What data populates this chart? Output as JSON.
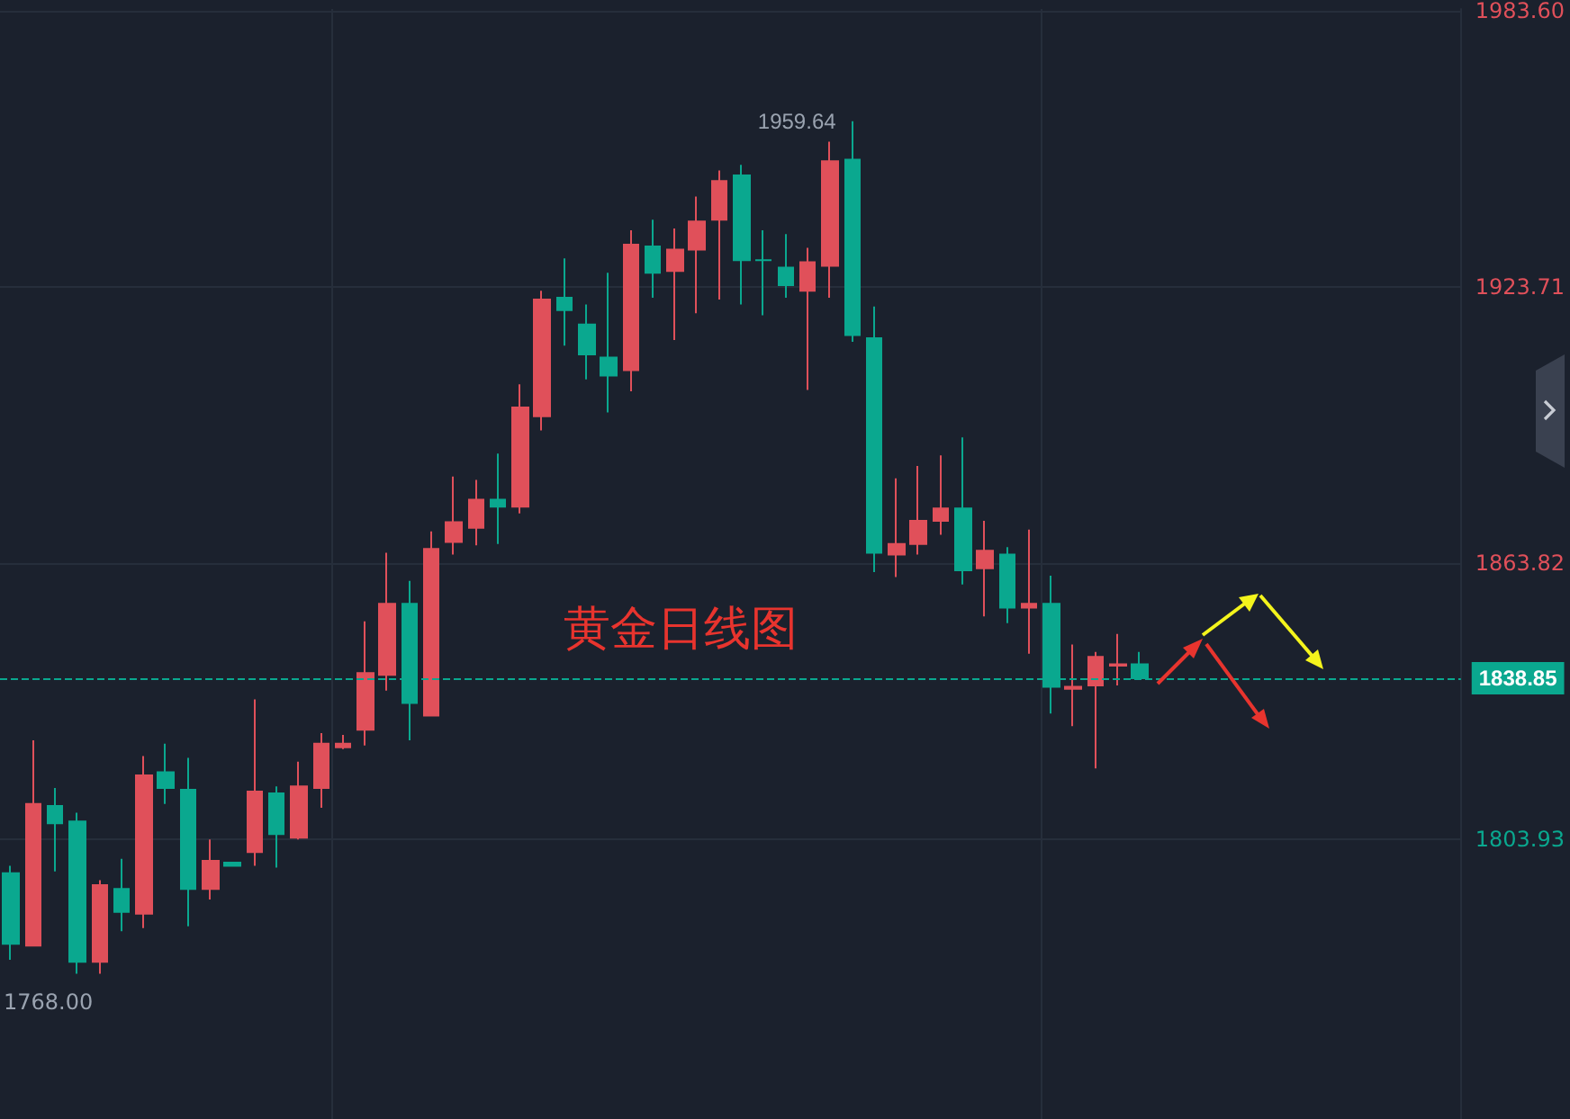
{
  "chart_data": {
    "type": "candlestick",
    "title": "黄金日线图",
    "categories": [
      null,
      null,
      null,
      null,
      null,
      null,
      null,
      null,
      null,
      null,
      null,
      null,
      null,
      null,
      null,
      null,
      null,
      null,
      null,
      null,
      null,
      null,
      null,
      null,
      null,
      null,
      null,
      null,
      null,
      null,
      null,
      null,
      null,
      null,
      null,
      null,
      null,
      null,
      null,
      null,
      null,
      null,
      null,
      null,
      null,
      null,
      null,
      null,
      null,
      null,
      null,
      null,
      null,
      null,
      null,
      null,
      null,
      null,
      null,
      null,
      null,
      null,
      null,
      null,
      null,
      null
    ],
    "ohlc": [
      [
        1796.6,
        1798.2,
        1777.8,
        1781.3
      ],
      [
        1780.9,
        1825.4,
        1780.9,
        1811.6
      ],
      [
        1811.2,
        1815.1,
        1797.0,
        1807.4
      ],
      [
        1807.8,
        1809.7,
        1774.8,
        1777.4
      ],
      [
        1777.4,
        1795.1,
        1774.8,
        1794.0
      ],
      [
        1793.2,
        1799.7,
        1784.0,
        1788.2
      ],
      [
        1787.8,
        1822.0,
        1784.7,
        1817.8
      ],
      [
        1818.5,
        1824.7,
        1811.6,
        1815.1
      ],
      [
        1814.7,
        1821.6,
        1785.1,
        1793.2
      ],
      [
        1793.2,
        1803.9,
        1790.9,
        1799.3
      ],
      [
        1798.9,
        1798.9,
        1798.2,
        1798.2
      ],
      [
        1801.2,
        1834.3,
        1798.2,
        1814.3
      ],
      [
        1813.9,
        1815.4,
        1797.8,
        1805.1
      ],
      [
        1804.3,
        1820.8,
        1803.9,
        1815.4
      ],
      [
        1815.1,
        1827.0,
        1810.8,
        1824.7
      ],
      [
        1823.9,
        1826.6,
        1823.5,
        1824.7
      ],
      [
        1827.7,
        1851.2,
        1824.3,
        1840.0
      ],
      [
        1839.6,
        1866.1,
        1836.2,
        1855.0
      ],
      [
        1855.0,
        1860.0,
        1825.4,
        1833.5
      ],
      [
        1830.8,
        1870.7,
        1830.8,
        1866.9
      ],
      [
        1868.4,
        1882.6,
        1865.7,
        1872.7
      ],
      [
        1871.5,
        1881.9,
        1867.7,
        1877.6
      ],
      [
        1877.6,
        1887.6,
        1868.0,
        1876.1
      ],
      [
        1876.1,
        1902.6,
        1874.6,
        1897.6
      ],
      [
        1895.7,
        1922.9,
        1892.6,
        1921.0
      ],
      [
        1921.4,
        1929.9,
        1911.0,
        1918.7
      ],
      [
        1915.6,
        1919.9,
        1903.7,
        1909.1
      ],
      [
        1908.4,
        1926.8,
        1896.5,
        1904.5
      ],
      [
        1905.7,
        1936.0,
        1901.1,
        1932.9
      ],
      [
        1932.5,
        1938.3,
        1921.4,
        1926.8
      ],
      [
        1927.2,
        1936.4,
        1912.2,
        1931.8
      ],
      [
        1931.8,
        1943.3,
        1918.0,
        1937.9
      ],
      [
        1938.3,
        1949.0,
        1921.0,
        1946.7
      ],
      [
        1947.9,
        1950.2,
        1919.9,
        1929.5
      ],
      [
        1929.5,
        1936.0,
        1917.6,
        1929.5
      ],
      [
        1927.9,
        1935.2,
        1921.4,
        1924.1
      ],
      [
        1922.9,
        1932.2,
        1901.4,
        1929.1
      ],
      [
        1928.3,
        1955.2,
        1921.4,
        1951.0
      ],
      [
        1951.3,
        1959.64,
        1911.8,
        1913.3
      ],
      [
        1912.6,
        1919.5,
        1861.9,
        1866.1
      ],
      [
        1865.7,
        1882.2,
        1860.8,
        1868.0
      ],
      [
        1868.0,
        1884.9,
        1865.7,
        1873.0
      ],
      [
        1873.0,
        1887.2,
        1870.0,
        1875.7
      ],
      [
        1875.7,
        1891.1,
        1859.2,
        1862.3
      ],
      [
        1862.7,
        1873.0,
        1852.3,
        1866.5
      ],
      [
        1865.7,
        1867.3,
        1850.8,
        1854.2
      ],
      [
        1854.2,
        1871.1,
        1844.2,
        1855.0
      ],
      [
        1855.0,
        1861.1,
        1831.2,
        1837.0
      ],
      [
        1836.6,
        1846.2,
        1828.5,
        1837.0
      ],
      [
        1837.3,
        1844.6,
        1819.3,
        1843.5
      ],
      [
        1841.6,
        1848.5,
        1837.3,
        1841.9
      ],
      [
        1841.9,
        1844.6,
        1838.85,
        1838.85
      ],
      null,
      null,
      null,
      null,
      null,
      null,
      null,
      null,
      null,
      null,
      null,
      null,
      null,
      null
    ],
    "colors": [
      "#0aa88f",
      "#e0505a",
      "#0aa88f",
      "#0aa88f",
      "#e0505a",
      "#0aa88f",
      "#e0505a",
      "#0aa88f",
      "#0aa88f",
      "#e0505a",
      "#0aa88f",
      "#e0505a",
      "#0aa88f",
      "#e0505a",
      "#e0505a",
      "#e0505a",
      "#e0505a",
      "#e0505a",
      "#0aa88f",
      "#e0505a",
      "#e0505a",
      "#e0505a",
      "#0aa88f",
      "#e0505a",
      "#e0505a",
      "#0aa88f",
      "#0aa88f",
      "#0aa88f",
      "#e0505a",
      "#0aa88f",
      "#e0505a",
      "#e0505a",
      "#e0505a",
      "#0aa88f",
      "#0aa88f",
      "#0aa88f",
      "#e0505a",
      "#e0505a",
      "#0aa88f",
      "#0aa88f",
      "#e0505a",
      "#e0505a",
      "#e0505a",
      "#0aa88f",
      "#e0505a",
      "#0aa88f",
      "#e0505a",
      "#0aa88f",
      "#e0505a",
      "#e0505a",
      "#e0505a",
      "#0aa88f",
      null,
      null,
      null,
      null,
      null,
      null,
      null,
      null,
      null,
      null,
      null,
      null,
      null,
      null
    ],
    "ylim": [
      1743.3,
      1984
    ],
    "yticks": [
      {
        "value": 1803.93,
        "label": "1803.93"
      },
      {
        "value": 1863.82,
        "label": "1863.82"
      },
      {
        "value": 1923.71,
        "label": "1923.71"
      },
      {
        "value": 1983.6,
        "label": "1983.60"
      }
    ],
    "ref_lines": [
      {
        "axis": "y",
        "value": 1838.85,
        "label": "1838.85",
        "color": "#0aa88f",
        "line_style": "dashed"
      }
    ],
    "annotations": [
      "1959.64",
      "1768.00"
    ],
    "grid": true,
    "tick_labels": "y"
  }
}
